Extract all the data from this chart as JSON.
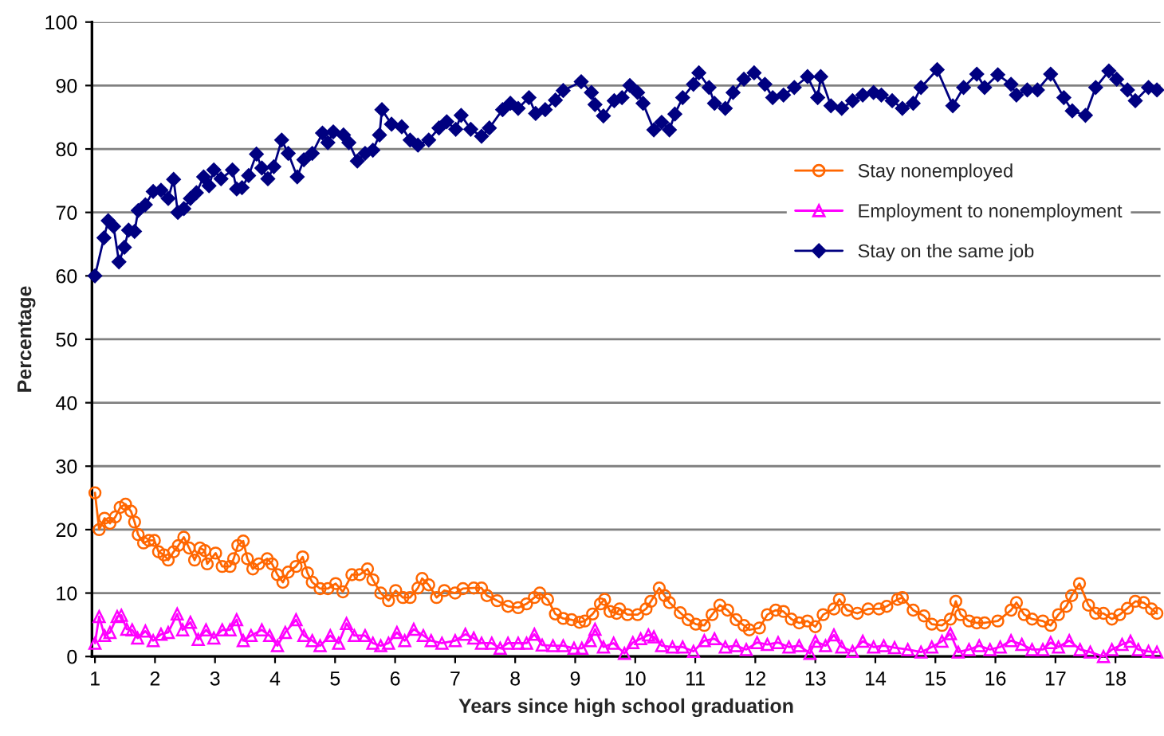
{
  "chart_data": {
    "type": "line",
    "xlabel": "Years since high school graduation",
    "ylabel": "Percentage",
    "xlim": [
      0.95,
      18.75
    ],
    "xticks": [
      1,
      2,
      3,
      4,
      5,
      6,
      7,
      8,
      9,
      10,
      11,
      12,
      13,
      14,
      15,
      16,
      17,
      18
    ],
    "ylim": [
      0,
      100
    ],
    "yticks": [
      0,
      10,
      20,
      30,
      40,
      50,
      60,
      70,
      80,
      90,
      100
    ],
    "grid": "y",
    "legend": "right",
    "series": [
      {
        "name": "Stay nonemployed",
        "color": "#ff6600",
        "marker": "circle",
        "x": [
          1.0,
          1.07,
          1.16,
          1.25,
          1.34,
          1.42,
          1.51,
          1.6,
          1.66,
          1.72,
          1.81,
          1.9,
          1.99,
          2.06,
          2.15,
          2.22,
          2.31,
          2.39,
          2.48,
          2.57,
          2.66,
          2.75,
          2.83,
          2.87,
          3.01,
          3.12,
          3.25,
          3.31,
          3.38,
          3.47,
          3.54,
          3.63,
          3.73,
          3.87,
          3.95,
          4.04,
          4.13,
          4.22,
          4.35,
          4.46,
          4.54,
          4.62,
          4.75,
          4.88,
          5.01,
          5.13,
          5.28,
          5.41,
          5.54,
          5.63,
          5.76,
          5.89,
          6.01,
          6.13,
          6.25,
          6.38,
          6.45,
          6.56,
          6.69,
          6.82,
          7.0,
          7.13,
          7.31,
          7.44,
          7.53,
          7.7,
          7.88,
          8.05,
          8.19,
          8.32,
          8.41,
          8.54,
          8.67,
          8.8,
          8.94,
          9.07,
          9.16,
          9.29,
          9.42,
          9.49,
          9.58,
          9.69,
          9.74,
          9.87,
          10.04,
          10.18,
          10.26,
          10.4,
          10.49,
          10.57,
          10.75,
          10.88,
          11.01,
          11.15,
          11.28,
          11.41,
          11.54,
          11.68,
          11.81,
          11.9,
          12.07,
          12.2,
          12.34,
          12.47,
          12.6,
          12.73,
          12.87,
          13.0,
          13.13,
          13.31,
          13.4,
          13.53,
          13.7,
          13.88,
          14.06,
          14.19,
          14.37,
          14.45,
          14.63,
          14.81,
          14.94,
          15.11,
          15.25,
          15.34,
          15.42,
          15.56,
          15.69,
          15.82,
          16.04,
          16.26,
          16.35,
          16.48,
          16.61,
          16.79,
          16.92,
          17.05,
          17.18,
          17.27,
          17.4,
          17.55,
          17.67,
          17.8,
          17.94,
          18.07,
          18.2,
          18.33,
          18.47,
          18.6,
          18.69
        ],
        "values": [
          25.8,
          20,
          21.8,
          21,
          22,
          23.5,
          24,
          22.9,
          21.2,
          19.2,
          17.9,
          18.3,
          18.3,
          16.5,
          16,
          15.2,
          16.5,
          17.5,
          18.8,
          17.1,
          15.2,
          17.1,
          16.7,
          14.6,
          16.3,
          14.2,
          14.2,
          15.4,
          17.5,
          18.2,
          15.4,
          13.8,
          14.6,
          15.4,
          14.6,
          12.9,
          11.7,
          13.3,
          14.2,
          15.7,
          13.2,
          11.7,
          10.7,
          10.7,
          11.5,
          10.2,
          12.9,
          12.9,
          13.8,
          12.1,
          10,
          8.8,
          10.4,
          9.3,
          9.3,
          10.8,
          12.3,
          11.3,
          9.3,
          10.4,
          10,
          10.7,
          10.8,
          10.8,
          9.6,
          8.8,
          7.9,
          7.7,
          8.3,
          9.3,
          10,
          9,
          6.7,
          6,
          5.8,
          5.4,
          5.6,
          6.7,
          8.3,
          9,
          7.1,
          6.8,
          7.5,
          6.6,
          6.6,
          7.5,
          8.7,
          10.8,
          9.6,
          8.5,
          6.9,
          5.8,
          5.1,
          4.9,
          6.6,
          8.1,
          7.3,
          5.8,
          4.9,
          4.2,
          4.5,
          6.6,
          7.3,
          7.1,
          5.9,
          5.3,
          5.6,
          4.7,
          6.6,
          7.5,
          9,
          7.3,
          6.8,
          7.5,
          7.5,
          7.9,
          9,
          9.3,
          7.3,
          6.4,
          5.1,
          4.9,
          5.9,
          8.7,
          6.6,
          5.6,
          5.3,
          5.3,
          5.6,
          7.3,
          8.5,
          6.6,
          5.9,
          5.6,
          4.9,
          6.6,
          7.9,
          9.6,
          11.5,
          8.1,
          6.8,
          6.8,
          5.9,
          6.6,
          7.6,
          8.7,
          8.5,
          7.5,
          6.8
        ]
      },
      {
        "name": "Employment to nonemployment",
        "color": "#ff00ff",
        "marker": "triangle",
        "x": [
          1.0,
          1.07,
          1.16,
          1.25,
          1.37,
          1.44,
          1.53,
          1.62,
          1.71,
          1.84,
          1.97,
          2.1,
          2.22,
          2.37,
          2.46,
          2.59,
          2.72,
          2.85,
          2.98,
          3.12,
          3.25,
          3.36,
          3.47,
          3.6,
          3.78,
          3.91,
          4.04,
          4.17,
          4.35,
          4.48,
          4.62,
          4.75,
          4.92,
          5.06,
          5.19,
          5.32,
          5.5,
          5.63,
          5.76,
          5.89,
          6.03,
          6.16,
          6.31,
          6.47,
          6.6,
          6.78,
          7.0,
          7.17,
          7.31,
          7.44,
          7.61,
          7.75,
          7.88,
          8.05,
          8.19,
          8.32,
          8.45,
          8.63,
          8.8,
          8.98,
          9.11,
          9.25,
          9.33,
          9.47,
          9.64,
          9.82,
          9.96,
          10.09,
          10.22,
          10.31,
          10.44,
          10.62,
          10.79,
          10.97,
          11.15,
          11.32,
          11.5,
          11.68,
          11.85,
          12.03,
          12.2,
          12.38,
          12.56,
          12.73,
          12.91,
          13.0,
          13.17,
          13.31,
          13.44,
          13.62,
          13.79,
          13.97,
          14.14,
          14.32,
          14.54,
          14.76,
          14.94,
          15.11,
          15.25,
          15.38,
          15.56,
          15.73,
          15.91,
          16.08,
          16.26,
          16.44,
          16.61,
          16.79,
          16.92,
          17.05,
          17.23,
          17.41,
          17.58,
          17.8,
          17.94,
          18.11,
          18.25,
          18.38,
          18.55,
          18.69
        ],
        "values": [
          2.1,
          6.3,
          3.3,
          3.8,
          6.3,
          6.5,
          4.3,
          4.2,
          2.9,
          4,
          2.5,
          3.5,
          3.8,
          6.7,
          4.2,
          5.4,
          2.7,
          4.2,
          2.9,
          4.2,
          4.2,
          5.8,
          2.5,
          3.3,
          4.2,
          3.3,
          1.7,
          3.8,
          5.8,
          3.3,
          2.5,
          1.7,
          3.3,
          2.1,
          5.2,
          3.3,
          3.3,
          2.1,
          1.7,
          2.1,
          3.8,
          2.5,
          4.3,
          3.3,
          2.5,
          2.1,
          2.5,
          3.5,
          2.9,
          2.1,
          2.1,
          1.3,
          2.1,
          2.1,
          2.1,
          3.5,
          1.8,
          1.7,
          1.7,
          1.3,
          1.3,
          2.5,
          4.3,
          1.5,
          2.1,
          0.5,
          2.2,
          2.8,
          3.4,
          3.1,
          1.7,
          1.5,
          1.5,
          0.8,
          2.5,
          2.8,
          1.5,
          1.7,
          1.1,
          2.2,
          1.9,
          2.2,
          1.5,
          1.7,
          0.5,
          2.4,
          1.7,
          3.4,
          1.5,
          0.8,
          2.4,
          1.5,
          1.7,
          1.4,
          1.1,
          0.7,
          1.5,
          2.4,
          3.6,
          0.7,
          1.1,
          1.7,
          1.1,
          1.5,
          2.5,
          1.9,
          1.1,
          1.1,
          2.2,
          1.5,
          2.5,
          1.1,
          0.7,
          0,
          1.1,
          1.9,
          2.4,
          1.1,
          0.8,
          0.7
        ]
      },
      {
        "name": "Stay on the same job",
        "color": "#000080",
        "marker": "diamond",
        "x": [
          1.0,
          1.15,
          1.22,
          1.31,
          1.4,
          1.49,
          1.56,
          1.66,
          1.72,
          1.84,
          1.97,
          2.1,
          2.22,
          2.31,
          2.38,
          2.48,
          2.59,
          2.69,
          2.81,
          2.9,
          2.98,
          3.1,
          3.29,
          3.36,
          3.45,
          3.56,
          3.69,
          3.78,
          3.88,
          3.98,
          4.11,
          4.22,
          4.37,
          4.48,
          4.62,
          4.79,
          4.88,
          4.97,
          5.14,
          5.23,
          5.37,
          5.5,
          5.63,
          5.74,
          5.78,
          5.94,
          6.11,
          6.25,
          6.38,
          6.56,
          6.73,
          6.86,
          7.01,
          7.1,
          7.26,
          7.44,
          7.57,
          7.79,
          7.92,
          8.05,
          8.23,
          8.34,
          8.5,
          8.67,
          8.8,
          9.1,
          9.27,
          9.33,
          9.47,
          9.65,
          9.78,
          9.91,
          10.04,
          10.13,
          10.31,
          10.44,
          10.57,
          10.66,
          10.79,
          10.97,
          11.06,
          11.23,
          11.32,
          11.5,
          11.63,
          11.81,
          11.98,
          12.16,
          12.29,
          12.47,
          12.65,
          12.87,
          13.04,
          13.09,
          13.26,
          13.44,
          13.62,
          13.79,
          13.97,
          14.1,
          14.28,
          14.45,
          14.63,
          14.76,
          15.03,
          15.29,
          15.47,
          15.69,
          15.82,
          16.04,
          16.26,
          16.35,
          16.53,
          16.7,
          16.92,
          17.14,
          17.28,
          17.5,
          17.67,
          17.89,
          18.02,
          18.2,
          18.33,
          18.55,
          18.69
        ],
        "values": [
          60,
          66,
          68.7,
          67.8,
          62.2,
          64.5,
          67.2,
          67,
          70.3,
          71.2,
          73.3,
          73.5,
          72.2,
          75.2,
          70,
          70.6,
          72.2,
          73.1,
          75.6,
          74.2,
          76.7,
          75.3,
          76.7,
          73.7,
          73.9,
          75.8,
          79.2,
          77,
          75.3,
          77.2,
          81.4,
          79.3,
          75.6,
          78.3,
          79.3,
          82.5,
          81,
          82.7,
          82.2,
          81,
          78.1,
          79.3,
          79.8,
          82.2,
          86.2,
          83.9,
          83.5,
          81.4,
          80.6,
          81.4,
          83.3,
          84.3,
          83.1,
          85.3,
          83.1,
          82,
          83.3,
          86.2,
          87.2,
          86.4,
          88.1,
          85.6,
          86.2,
          87.7,
          89.2,
          90.6,
          88.9,
          87,
          85.2,
          87.6,
          88.1,
          90,
          88.9,
          87.2,
          83,
          84.2,
          83,
          85.5,
          88.1,
          90.2,
          92,
          89.7,
          87.2,
          86.4,
          88.9,
          91,
          92,
          90.2,
          88.1,
          88.5,
          89.7,
          91.4,
          88.1,
          91.4,
          86.8,
          86.4,
          87.6,
          88.5,
          88.9,
          88.5,
          87.6,
          86.4,
          87.2,
          89.7,
          92.5,
          86.8,
          89.7,
          91.8,
          89.7,
          91.7,
          90.2,
          88.5,
          89.3,
          89.3,
          91.8,
          88.1,
          86,
          85.3,
          89.7,
          92.3,
          91,
          89.3,
          87.6,
          89.7,
          89.3
        ]
      }
    ]
  }
}
